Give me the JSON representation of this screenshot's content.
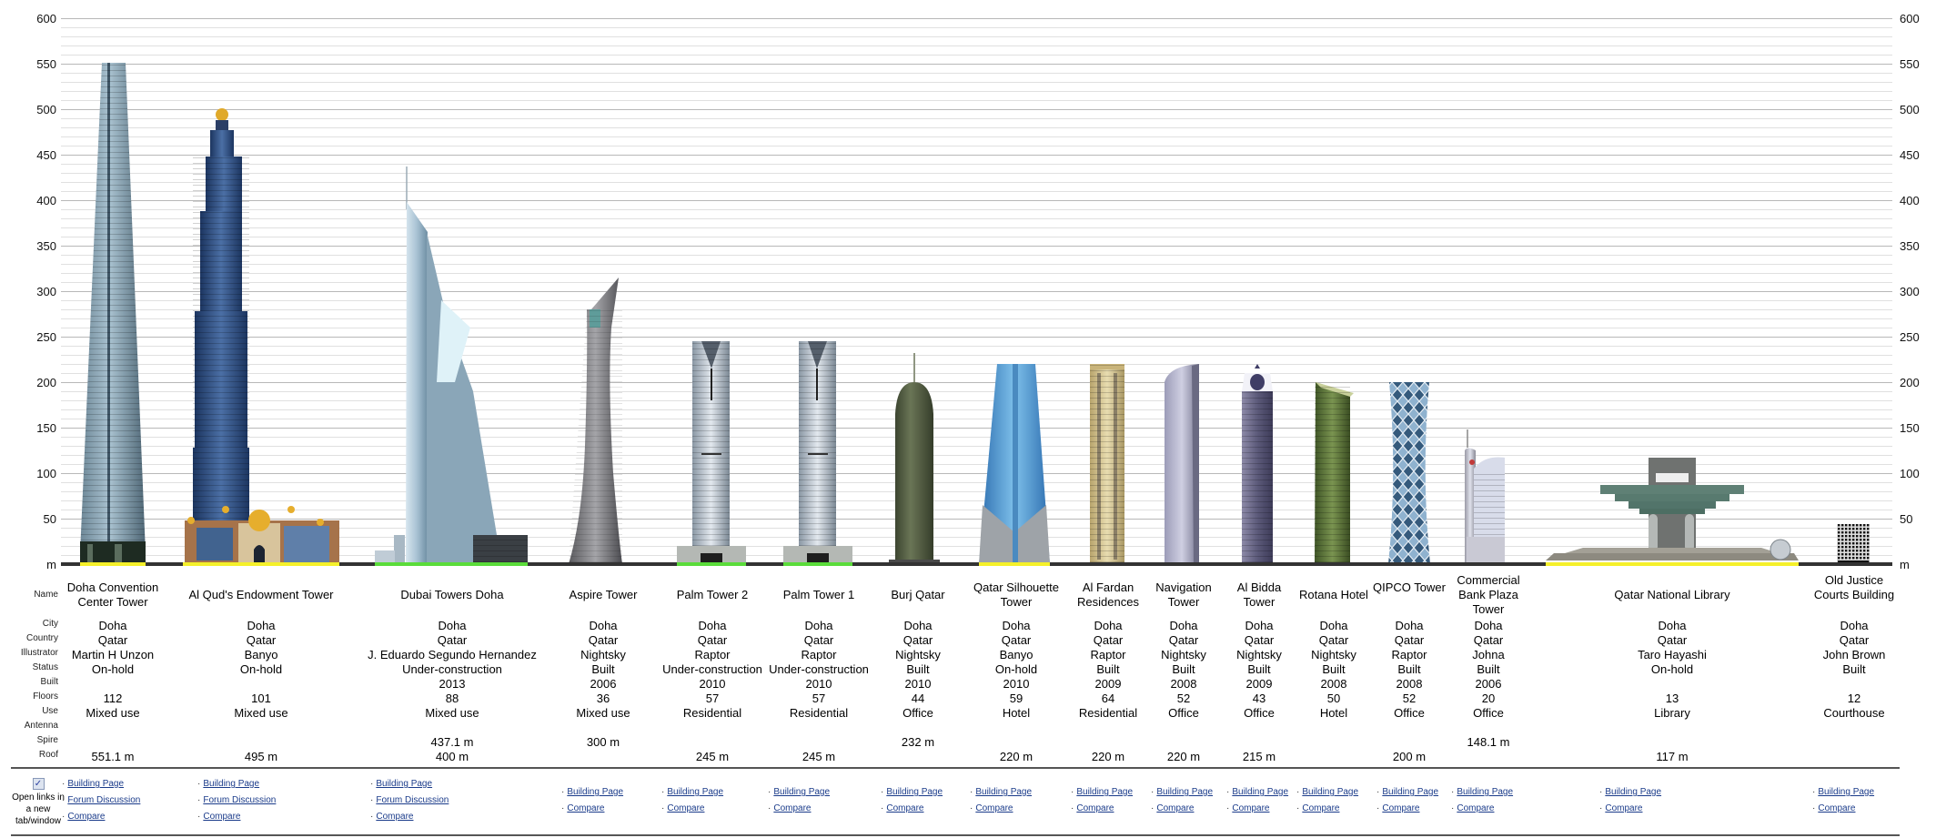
{
  "chart_data": {
    "type": "bar",
    "title": "",
    "xlabel": "",
    "ylabel": "m",
    "ylim": [
      0,
      600
    ],
    "y_ticks": [
      "m",
      "50",
      "100",
      "150",
      "200",
      "250",
      "300",
      "350",
      "400",
      "450",
      "500",
      "550",
      "600"
    ],
    "grid": true,
    "minor_grid_step": 10,
    "categories": [
      "Doha Convention Center Tower",
      "Al Qud's Endowment Tower",
      "Dubai Towers Doha",
      "Aspire Tower",
      "Palm Tower 2",
      "Palm Tower 1",
      "Burj Qatar",
      "Qatar Silhouette Tower",
      "Al Fardan Residences",
      "Navigation Tower",
      "Al Bidda Tower",
      "Rotana Hotel",
      "QIPCO Tower",
      "Commercial Bank Plaza Tower",
      "Qatar National Library",
      "Old Justice Courts Building"
    ],
    "series": [
      {
        "name": "Roof",
        "values": [
          551.1,
          495,
          400,
          null,
          245,
          245,
          null,
          220,
          220,
          220,
          215,
          null,
          200,
          null,
          117,
          null
        ]
      },
      {
        "name": "Spire",
        "values": [
          null,
          null,
          437.1,
          300,
          null,
          null,
          232,
          null,
          null,
          null,
          null,
          null,
          null,
          148.1,
          null,
          null
        ]
      },
      {
        "name": "Antenna",
        "values": [
          null,
          null,
          null,
          null,
          null,
          null,
          null,
          null,
          null,
          null,
          null,
          null,
          null,
          null,
          null,
          null
        ]
      }
    ],
    "ground_colors": {
      "on_hold": "#f5f02a",
      "under_construction": "#5adc3a",
      "built": "#333333"
    }
  },
  "axis": {
    "unit_label": "m",
    "ticks": [
      {
        "label": "600",
        "value": 600
      },
      {
        "label": "550",
        "value": 550
      },
      {
        "label": "500",
        "value": 500
      },
      {
        "label": "450",
        "value": 450
      },
      {
        "label": "400",
        "value": 400
      },
      {
        "label": "350",
        "value": 350
      },
      {
        "label": "300",
        "value": 300
      },
      {
        "label": "250",
        "value": 250
      },
      {
        "label": "200",
        "value": 200
      },
      {
        "label": "150",
        "value": 150
      },
      {
        "label": "100",
        "value": 100
      },
      {
        "label": "50",
        "value": 50
      },
      {
        "label": "m",
        "value": 0
      }
    ]
  },
  "row_labels": {
    "name": "Name",
    "city": "City",
    "country": "Country",
    "illustrator": "Illustrator",
    "status": "Status",
    "built": "Built",
    "floors": "Floors",
    "use": "Use",
    "antenna": "Antenna",
    "spire": "Spire",
    "roof": "Roof"
  },
  "new_tab": {
    "label": "Open links in a new tab/window",
    "checked": true
  },
  "buildings": [
    {
      "name": "Doha Convention Center Tower",
      "city": "Doha",
      "country": "Qatar",
      "illustrator": "Martin H Unzon",
      "status": "On-hold",
      "built": "",
      "floors": "112",
      "use": "Mixed use",
      "antenna": "",
      "spire": "",
      "roof": "551.1 m",
      "links": [
        "Building Page",
        "Forum Discussion",
        "Compare"
      ]
    },
    {
      "name": "Al Qud's Endowment Tower",
      "city": "Doha",
      "country": "Qatar",
      "illustrator": "Banyo",
      "status": "On-hold",
      "built": "",
      "floors": "101",
      "use": "Mixed use",
      "antenna": "",
      "spire": "",
      "roof": "495 m",
      "links": [
        "Building Page",
        "Forum Discussion",
        "Compare"
      ]
    },
    {
      "name": "Dubai Towers Doha",
      "city": "Doha",
      "country": "Qatar",
      "illustrator": "J. Eduardo Segundo Hernandez",
      "status": "Under-construction",
      "built": "2013",
      "floors": "88",
      "use": "Mixed use",
      "antenna": "",
      "spire": "437.1 m",
      "roof": "400 m",
      "links": [
        "Building Page",
        "Forum Discussion",
        "Compare"
      ]
    },
    {
      "name": "Aspire Tower",
      "city": "Doha",
      "country": "Qatar",
      "illustrator": "Nightsky",
      "status": "Built",
      "built": "2006",
      "floors": "36",
      "use": "Mixed use",
      "antenna": "",
      "spire": "300 m",
      "roof": "",
      "links": [
        "Building Page",
        "Compare"
      ]
    },
    {
      "name": "Palm Tower 2",
      "city": "Doha",
      "country": "Qatar",
      "illustrator": "Raptor",
      "status": "Under-construction",
      "built": "2010",
      "floors": "57",
      "use": "Residential",
      "antenna": "",
      "spire": "",
      "roof": "245 m",
      "links": [
        "Building Page",
        "Compare"
      ]
    },
    {
      "name": "Palm Tower 1",
      "city": "Doha",
      "country": "Qatar",
      "illustrator": "Raptor",
      "status": "Under-construction",
      "built": "2010",
      "floors": "57",
      "use": "Residential",
      "antenna": "",
      "spire": "",
      "roof": "245 m",
      "links": [
        "Building Page",
        "Compare"
      ]
    },
    {
      "name": "Burj Qatar",
      "city": "Doha",
      "country": "Qatar",
      "illustrator": "Nightsky",
      "status": "Built",
      "built": "2010",
      "floors": "44",
      "use": "Office",
      "antenna": "",
      "spire": "232 m",
      "roof": "",
      "links": [
        "Building Page",
        "Compare"
      ]
    },
    {
      "name": "Qatar Silhouette Tower",
      "city": "Doha",
      "country": "Qatar",
      "illustrator": "Banyo",
      "status": "On-hold",
      "built": "2010",
      "floors": "59",
      "use": "Hotel",
      "antenna": "",
      "spire": "",
      "roof": "220 m",
      "links": [
        "Building Page",
        "Compare"
      ]
    },
    {
      "name": "Al Fardan Residences",
      "city": "Doha",
      "country": "Qatar",
      "illustrator": "Raptor",
      "status": "Built",
      "built": "2009",
      "floors": "64",
      "use": "Residential",
      "antenna": "",
      "spire": "",
      "roof": "220 m",
      "links": [
        "Building Page",
        "Compare"
      ]
    },
    {
      "name": "Navigation Tower",
      "city": "Doha",
      "country": "Qatar",
      "illustrator": "Nightsky",
      "status": "Built",
      "built": "2008",
      "floors": "52",
      "use": "Office",
      "antenna": "",
      "spire": "",
      "roof": "220 m",
      "links": [
        "Building Page",
        "Compare"
      ]
    },
    {
      "name": "Al Bidda Tower",
      "city": "Doha",
      "country": "Qatar",
      "illustrator": "Nightsky",
      "status": "Built",
      "built": "2009",
      "floors": "43",
      "use": "Office",
      "antenna": "",
      "spire": "",
      "roof": "215 m",
      "links": [
        "Building Page",
        "Compare"
      ]
    },
    {
      "name": "Rotana Hotel",
      "city": "Doha",
      "country": "Qatar",
      "illustrator": "Nightsky",
      "status": "Built",
      "built": "2008",
      "floors": "50",
      "use": "Hotel",
      "antenna": "",
      "spire": "",
      "roof": "",
      "links": [
        "Building Page",
        "Compare"
      ]
    },
    {
      "name": "QIPCO Tower",
      "city": "Doha",
      "country": "Qatar",
      "illustrator": "Raptor",
      "status": "Built",
      "built": "2008",
      "floors": "52",
      "use": "Office",
      "antenna": "",
      "spire": "",
      "roof": "200 m",
      "links": [
        "Building Page",
        "Compare"
      ]
    },
    {
      "name": "Commercial Bank Plaza Tower",
      "city": "Doha",
      "country": "Qatar",
      "illustrator": "Johna",
      "status": "Built",
      "built": "2006",
      "floors": "20",
      "use": "Office",
      "antenna": "",
      "spire": "148.1 m",
      "roof": "",
      "links": [
        "Building Page",
        "Compare"
      ]
    },
    {
      "name": "Qatar National Library",
      "city": "Doha",
      "country": "Qatar",
      "illustrator": "Taro Hayashi",
      "status": "On-hold",
      "built": "",
      "floors": "13",
      "use": "Library",
      "antenna": "",
      "spire": "",
      "roof": "117 m",
      "links": [
        "Building Page",
        "Compare"
      ]
    },
    {
      "name": "Old Justice Courts Building",
      "city": "Doha",
      "country": "Qatar",
      "illustrator": "John Brown",
      "status": "Built",
      "built": "",
      "floors": "12",
      "use": "Courthouse",
      "antenna": "",
      "spire": "",
      "roof": "",
      "links": [
        "Building Page",
        "Compare"
      ]
    }
  ]
}
